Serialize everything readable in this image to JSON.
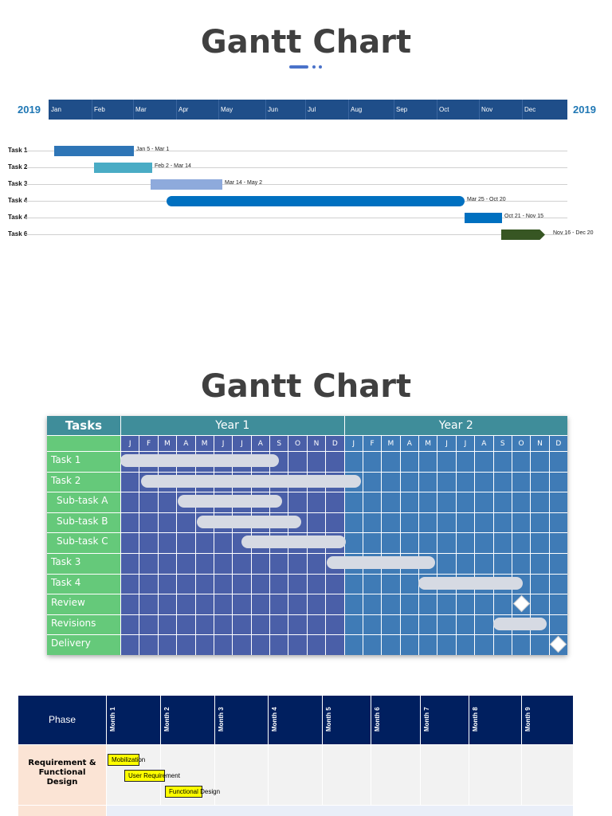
{
  "section1": {
    "title": "Gantt Chart",
    "year_left": "2019",
    "year_right": "2019",
    "months": [
      "Jan",
      "Feb",
      "Mar",
      "Apr",
      "May",
      "Jun",
      "Jul",
      "Aug",
      "Sep",
      "Oct",
      "Nov",
      "Dec"
    ],
    "tasks": [
      {
        "label": "Task 1",
        "range": "Jan 5 - Mar 1",
        "color": "#2e75b6"
      },
      {
        "label": "Task 2",
        "range": "Feb 2 - Mar 14",
        "color": "#4aacc5"
      },
      {
        "label": "Task 3",
        "range": "Mar 14 - May 2",
        "color": "#8eaadc"
      },
      {
        "label": "Task 4",
        "range": "Mar 25 - Oct 20",
        "color": "#0070c0"
      },
      {
        "label": "Task 4",
        "range": "Oct 21 - Nov 15",
        "color": "#0070c0"
      },
      {
        "label": "Task 6",
        "range": "Nov 16 - Dec 20",
        "color": "#375623"
      }
    ]
  },
  "section2": {
    "title": "Gantt Chart",
    "tasks_header": "Tasks",
    "year1": "Year 1",
    "year2": "Year 2",
    "month_letters": [
      "J",
      "F",
      "M",
      "A",
      "M",
      "J",
      "J",
      "A",
      "S",
      "O",
      "N",
      "D",
      "J",
      "F",
      "M",
      "A",
      "M",
      "J",
      "J",
      "A",
      "S",
      "O",
      "N",
      "D"
    ],
    "rows": [
      {
        "label": "Task 1",
        "start": 1,
        "end": 9.5
      },
      {
        "label": "Task 2",
        "start": 2.1,
        "end": 13.9
      },
      {
        "label": "Sub-task A",
        "start": 4.1,
        "end": 9.7
      },
      {
        "label": "Sub-task B",
        "start": 5.1,
        "end": 10.7
      },
      {
        "label": "Sub-task C",
        "start": 7.5,
        "end": 13.1
      },
      {
        "label": "Task 3",
        "start": 12.1,
        "end": 17.9
      },
      {
        "label": "Task 4",
        "start": 17,
        "end": 22.6
      },
      {
        "label": "Review",
        "milestone": 22
      },
      {
        "label": "Revisions",
        "start": 21,
        "end": 23.9
      },
      {
        "label": "Delivery",
        "milestone": 24
      }
    ],
    "colors": {
      "label_bg": "#65c97a",
      "year1_bg": "#4a5fa8",
      "year2_bg": "#3f7bb6",
      "header_bg": "#3f8d9a"
    }
  },
  "section3": {
    "phase_header": "Phase",
    "months": [
      "Month 1",
      "Month 2",
      "Month 3",
      "Month 4",
      "Month 5",
      "Month 6",
      "Month 7",
      "Month 8",
      "Month 9"
    ],
    "phase1": "Requirement & Functional Design",
    "tasks": [
      "Mobilization",
      "User Requirement",
      "Functional Design"
    ]
  }
}
